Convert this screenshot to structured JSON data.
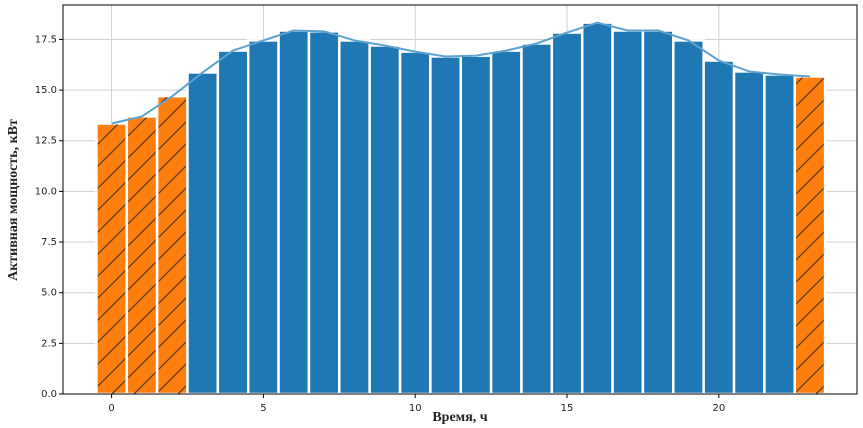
{
  "chart_data": {
    "type": "bar",
    "x_label": "Время, ч",
    "y_label": "Активная мощность, кВт",
    "categories": [
      0,
      1,
      2,
      3,
      4,
      5,
      6,
      7,
      8,
      9,
      10,
      11,
      12,
      13,
      14,
      15,
      16,
      17,
      18,
      19,
      20,
      21,
      22,
      23
    ],
    "values": [
      13.35,
      13.7,
      14.7,
      15.87,
      16.95,
      17.45,
      17.94,
      17.9,
      17.45,
      17.2,
      16.9,
      16.66,
      16.7,
      16.95,
      17.3,
      17.84,
      18.33,
      17.94,
      17.94,
      17.45,
      16.46,
      15.92,
      15.77,
      15.67
    ],
    "colors": [
      "#ff7f0e",
      "#ff7f0e",
      "#ff7f0e",
      "#1f77b4",
      "#1f77b4",
      "#1f77b4",
      "#1f77b4",
      "#1f77b4",
      "#1f77b4",
      "#1f77b4",
      "#1f77b4",
      "#1f77b4",
      "#1f77b4",
      "#1f77b4",
      "#1f77b4",
      "#1f77b4",
      "#1f77b4",
      "#1f77b4",
      "#1f77b4",
      "#1f77b4",
      "#1f77b4",
      "#1f77b4",
      "#1f77b4",
      "#ff7f0e"
    ],
    "hatched_color": "#ff7f0e",
    "line_color": "#5fa2cf",
    "xlim": [
      -1.6,
      24.55
    ],
    "ylim": [
      0,
      19.2
    ],
    "xticks": [
      0,
      5,
      10,
      15,
      20
    ],
    "yticks": [
      {
        "value": 0,
        "label": "0.0"
      },
      2.5,
      {
        "value": 5,
        "label": "5.0"
      },
      7.5,
      {
        "value": 10,
        "label": "10.0"
      },
      12.5,
      {
        "value": 15,
        "label": "15.0"
      },
      17.5
    ],
    "grid": true
  }
}
